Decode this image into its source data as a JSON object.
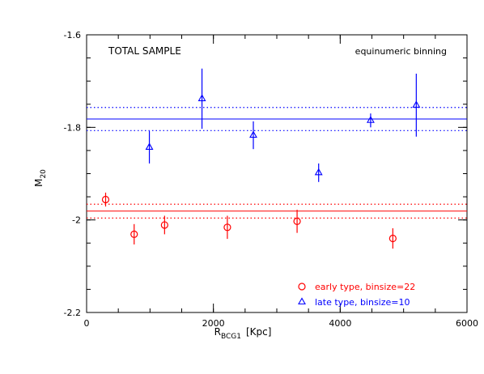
{
  "chart_data": {
    "type": "scatter",
    "title": "",
    "annotations": {
      "top_left": "TOTAL SAMPLE",
      "top_right": "equinumeric binning"
    },
    "xlabel": {
      "main": "R",
      "sub": "BCG1",
      "unit": "[Kpc]"
    },
    "ylabel": {
      "main": "M",
      "sub": "20"
    },
    "xlim": [
      0,
      6000
    ],
    "ylim": [
      -2.2,
      -1.6
    ],
    "x_ticks": [
      0,
      2000,
      4000,
      6000
    ],
    "x_tick_labels": [
      "0",
      "2000",
      "4000",
      "6000"
    ],
    "y_ticks": [
      -2.2,
      -2.0,
      -1.8,
      -1.6
    ],
    "y_tick_labels": [
      "-2.2",
      "-2",
      "-1.8",
      "-1.6"
    ],
    "x_minor_step": 500,
    "y_minor_step": 0.05,
    "grid": false,
    "legend_position": "bottom-right",
    "series": [
      {
        "name": "early type, binsize=22",
        "marker": "circle",
        "color": "#ff0000",
        "mean": -1.981,
        "mean_err": 0.015,
        "points": [
          {
            "x": 300,
            "y": -1.956,
            "err": 0.015
          },
          {
            "x": 750,
            "y": -2.031,
            "err": 0.022
          },
          {
            "x": 1230,
            "y": -2.011,
            "err": 0.02
          },
          {
            "x": 2220,
            "y": -2.016,
            "err": 0.025
          },
          {
            "x": 3320,
            "y": -2.003,
            "err": 0.025
          },
          {
            "x": 4830,
            "y": -2.04,
            "err": 0.022
          }
        ]
      },
      {
        "name": "late type, binsize=10",
        "marker": "triangle",
        "color": "#0000ff",
        "mean": -1.782,
        "mean_err": 0.025,
        "points": [
          {
            "x": 990,
            "y": -1.843,
            "err": 0.035
          },
          {
            "x": 1820,
            "y": -1.738,
            "err": 0.065
          },
          {
            "x": 2630,
            "y": -1.817,
            "err": 0.03
          },
          {
            "x": 3660,
            "y": -1.898,
            "err": 0.02
          },
          {
            "x": 4480,
            "y": -1.785,
            "err": 0.015
          },
          {
            "x": 5200,
            "y": -1.752,
            "err": 0.068
          }
        ]
      }
    ]
  }
}
